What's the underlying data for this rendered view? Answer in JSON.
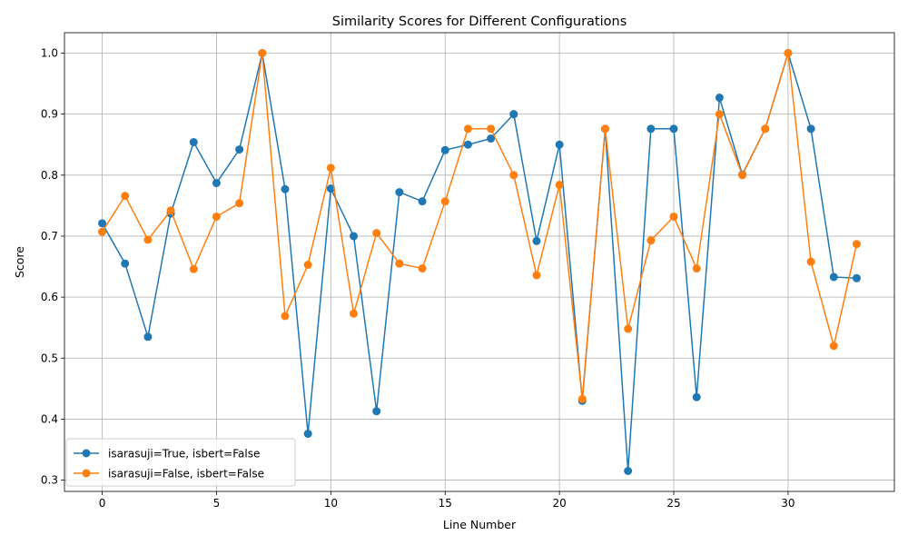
{
  "chart_data": {
    "type": "line",
    "title": "Similarity Scores for Different Configurations",
    "xlabel": "Line Number",
    "ylabel": "Score",
    "xlim": [
      -1.65,
      34.65
    ],
    "ylim": [
      0.2815,
      1.0335
    ],
    "xticks": [
      0,
      5,
      10,
      15,
      20,
      25,
      30
    ],
    "yticks": [
      0.3,
      0.4,
      0.5,
      0.6,
      0.7,
      0.8,
      0.9,
      1.0
    ],
    "ytick_labels": [
      "0.3",
      "0.4",
      "0.5",
      "0.6",
      "0.7",
      "0.8",
      "0.9",
      "1.0"
    ],
    "grid": true,
    "legend_position": "lower-left",
    "x": [
      0,
      1,
      2,
      3,
      4,
      5,
      6,
      7,
      8,
      9,
      10,
      11,
      12,
      13,
      14,
      15,
      16,
      17,
      18,
      19,
      20,
      21,
      22,
      23,
      24,
      25,
      26,
      27,
      28,
      29,
      30,
      31,
      32,
      33
    ],
    "series": [
      {
        "name": "isarasuji=True, isbert=False",
        "color": "#1f77b4",
        "values": [
          0.721,
          0.655,
          0.535,
          0.737,
          0.854,
          0.787,
          0.842,
          1.0,
          0.777,
          0.376,
          0.778,
          0.7,
          0.413,
          0.772,
          0.757,
          0.841,
          0.85,
          0.86,
          0.9,
          0.692,
          0.85,
          0.43,
          0.876,
          0.315,
          0.876,
          0.876,
          0.436,
          0.927,
          0.801,
          0.876,
          1.0,
          0.876,
          0.633,
          0.631
        ]
      },
      {
        "name": "isarasuji=False, isbert=False",
        "color": "#ff7f0e",
        "values": [
          0.707,
          0.766,
          0.694,
          0.742,
          0.646,
          0.732,
          0.754,
          1.0,
          0.569,
          0.653,
          0.812,
          0.573,
          0.705,
          0.655,
          0.647,
          0.757,
          0.876,
          0.876,
          0.8,
          0.636,
          0.784,
          0.433,
          0.876,
          0.548,
          0.693,
          0.732,
          0.647,
          0.9,
          0.8,
          0.876,
          1.0,
          0.658,
          0.52,
          0.687
        ]
      }
    ]
  }
}
